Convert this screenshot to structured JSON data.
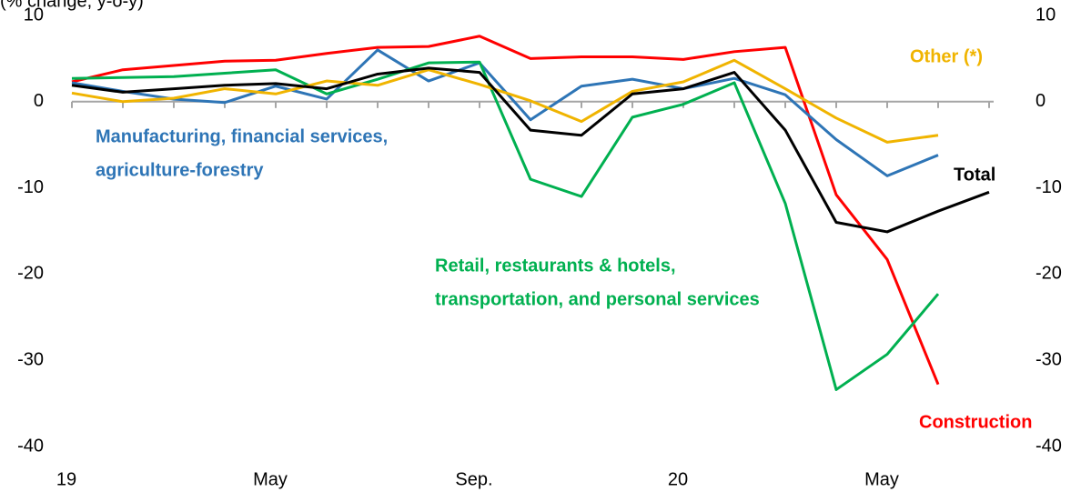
{
  "chart_data": {
    "type": "line",
    "subtitle": "(% change, y-o-y)",
    "categories": [
      "19",
      null,
      null,
      null,
      "May",
      null,
      null,
      null,
      "Sep.",
      null,
      null,
      null,
      "20",
      null,
      null,
      null,
      "May",
      null,
      null
    ],
    "ylim": [
      -40,
      10
    ],
    "yticks": [
      -40,
      -30,
      -20,
      -10,
      0,
      10
    ],
    "y2lim": [
      -40,
      10
    ],
    "y2ticks": [
      -40,
      -30,
      -20,
      -10,
      0,
      10
    ],
    "series": [
      {
        "name": [
          "Construction"
        ],
        "color": "#ff0000",
        "values": [
          2.3,
          3.7,
          4.2,
          4.7,
          4.8,
          5.6,
          6.3,
          6.4,
          7.6,
          5.0,
          5.2,
          5.2,
          4.9,
          5.8,
          6.3,
          -10.8,
          -18.3,
          -32.8,
          null
        ]
      },
      {
        "name": [
          "Manufacturing,  financial services,",
          "agriculture-forestry"
        ],
        "color": "#2e75b6",
        "values": [
          2.2,
          1.2,
          0.3,
          -0.1,
          1.8,
          0.3,
          6.0,
          2.4,
          4.5,
          -2.1,
          1.8,
          2.6,
          1.5,
          2.7,
          0.8,
          -4.4,
          -8.6,
          -6.2,
          null
        ]
      },
      {
        "name": [
          "Retail, restaurants  & hotels,",
          "transportation,  and personal services"
        ],
        "color": "#00b050",
        "values": [
          2.7,
          2.8,
          2.9,
          3.3,
          3.7,
          0.9,
          2.6,
          4.5,
          4.6,
          -9.0,
          -11.0,
          -1.8,
          -0.3,
          2.2,
          -11.8,
          -33.4,
          -29.3,
          -22.3,
          null
        ]
      },
      {
        "name": [
          "Other (*)"
        ],
        "color": "#f0b400",
        "values": [
          1.0,
          0.0,
          0.4,
          1.5,
          0.9,
          2.4,
          1.9,
          3.7,
          2.0,
          0.1,
          -2.3,
          1.2,
          2.3,
          4.8,
          1.5,
          -1.9,
          -4.7,
          -3.9,
          null
        ]
      },
      {
        "name": [
          "Total"
        ],
        "color": "#000000",
        "values": [
          1.9,
          1.1,
          1.5,
          1.9,
          2.1,
          1.5,
          3.2,
          3.9,
          3.4,
          -3.3,
          -3.9,
          0.9,
          1.5,
          3.4,
          -3.3,
          -14.0,
          -15.1,
          -12.7,
          -10.5
        ]
      }
    ]
  }
}
